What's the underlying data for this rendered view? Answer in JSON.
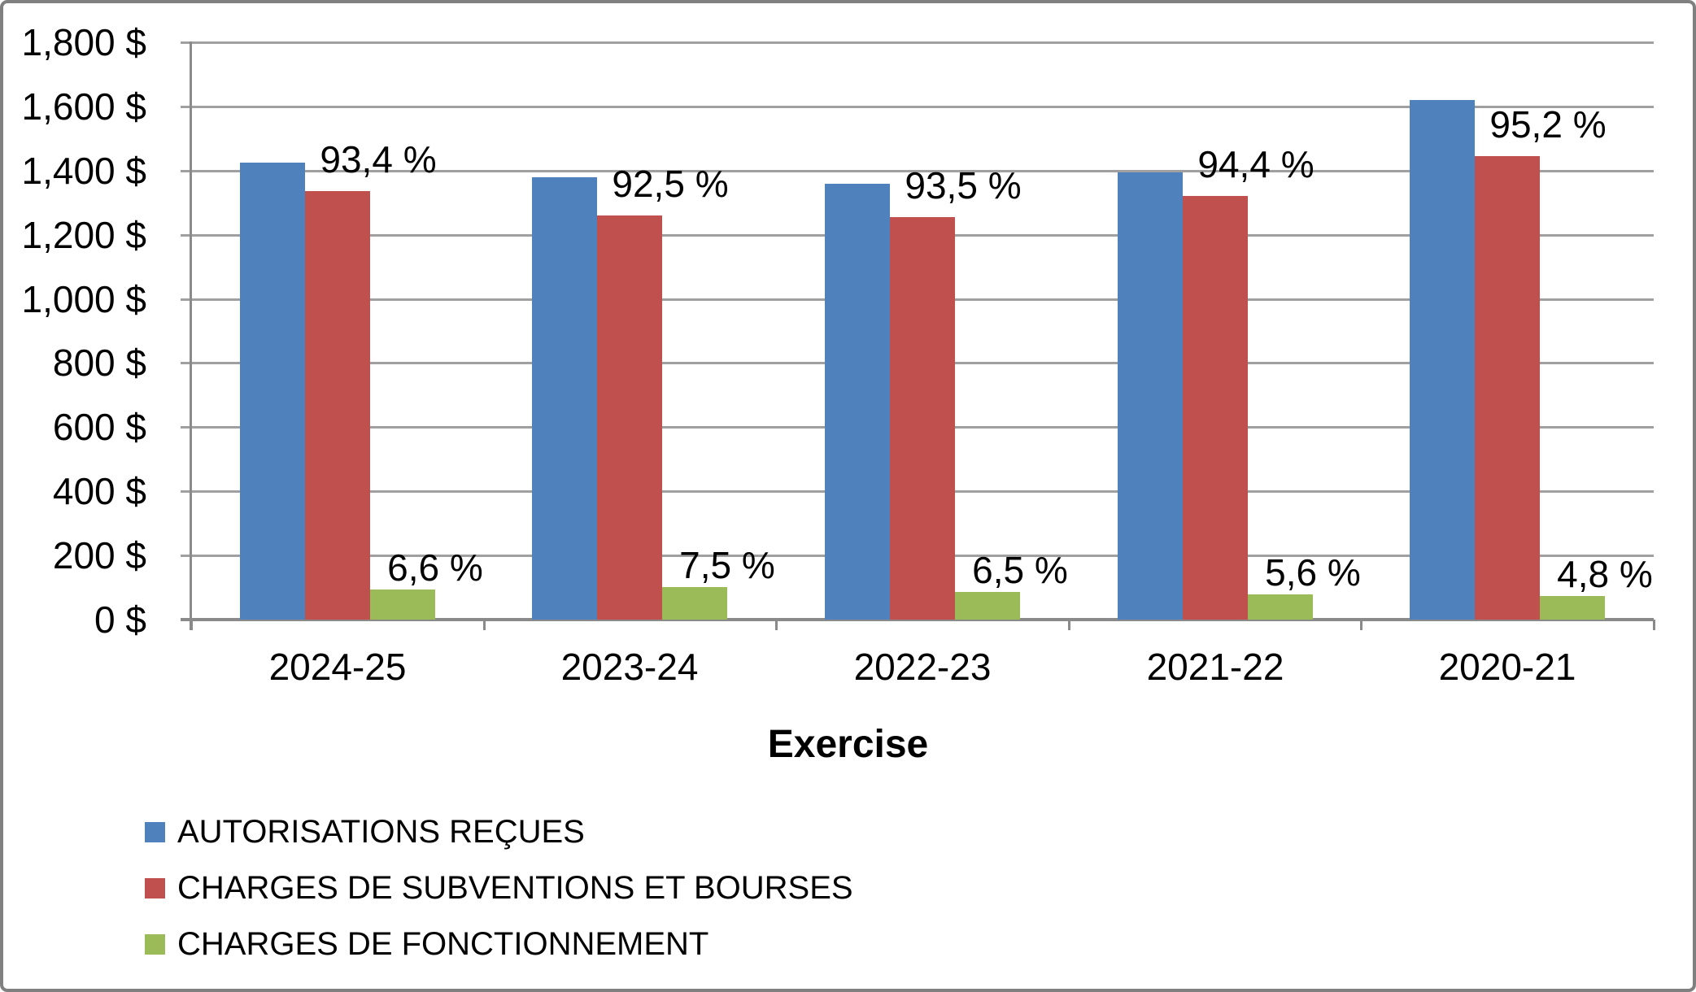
{
  "colors": {
    "background": "#FFFFFF",
    "frame_border": "#808080",
    "gridline": "#A0A0A0",
    "axis": "#8A8A8A",
    "text": "#000000",
    "series_blue": "#4F81BD",
    "series_red": "#C0504D",
    "series_green": "#9BBB59"
  },
  "chart_data": {
    "type": "bar",
    "title": "",
    "xlabel": "Exercise",
    "ylabel": "",
    "categories": [
      "2024-25",
      "2023-24",
      "2022-23",
      "2021-22",
      "2020-21"
    ],
    "series": [
      {
        "name": "AUTORISATIONS REÇUES",
        "color": "#4F81BD",
        "values": [
          1425,
          1380,
          1360,
          1395,
          1620
        ]
      },
      {
        "name": "CHARGES DE SUBVENTIONS ET BOURSES",
        "color": "#C0504D",
        "values": [
          1335,
          1260,
          1255,
          1320,
          1445
        ],
        "labels": [
          "93,4 %",
          "92,5 %",
          "93,5 %",
          "94,4 %",
          "95,2 %"
        ]
      },
      {
        "name": "CHARGES DE FONCTIONNEMENT",
        "color": "#9BBB59",
        "values": [
          95,
          102,
          87,
          78,
          73
        ],
        "labels": [
          "6,6 %",
          "7,5 %",
          "6,5 %",
          "5,6 %",
          "4,8 %"
        ]
      }
    ],
    "ylim": [
      0,
      1800
    ],
    "ytick_step": 200,
    "y_ticks": [
      "0 $",
      "200 $",
      "400 $",
      "600 $",
      "800 $",
      "1,000 $",
      "1,200 $",
      "1,400 $",
      "1,600 $",
      "1,800 $"
    ],
    "grid": true,
    "legend_position": "bottom-left"
  }
}
